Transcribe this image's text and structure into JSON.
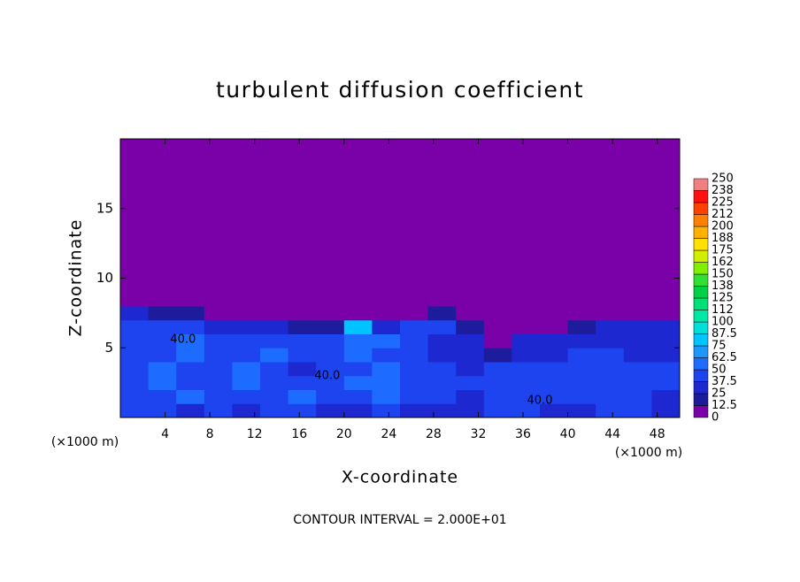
{
  "chart_data": {
    "type": "heatmap",
    "title": "turbulent diffusion coefficient",
    "xlabel": "X-coordinate",
    "ylabel": "Z-coordinate",
    "xunits": [
      "(×1000 m)",
      "(×1000 m)"
    ],
    "footer": "CONTOUR INTERVAL = 2.000E+01",
    "xlim": [
      0,
      50
    ],
    "ylim": [
      0,
      20
    ],
    "xticks": [
      4,
      8,
      12,
      16,
      20,
      24,
      28,
      32,
      36,
      40,
      44,
      48
    ],
    "yticks": [
      5,
      10,
      15
    ],
    "x": [
      0,
      2.5,
      5,
      7.5,
      10,
      12.5,
      15,
      17.5,
      20,
      22.5,
      25,
      27.5,
      30,
      32.5,
      35,
      37.5,
      40,
      42.5,
      45,
      47.5,
      50
    ],
    "y": [
      0,
      1,
      2,
      3,
      4,
      5,
      6,
      7,
      8,
      20
    ],
    "z": [
      [
        40,
        45,
        35,
        40,
        30,
        45,
        40,
        30,
        35,
        45,
        30,
        35,
        30,
        40,
        40,
        35,
        35,
        40,
        40,
        35
      ],
      [
        45,
        40,
        50,
        45,
        40,
        45,
        50,
        45,
        40,
        60,
        45,
        40,
        35,
        45,
        40,
        40,
        45,
        45,
        40,
        35
      ],
      [
        45,
        55,
        45,
        40,
        50,
        45,
        40,
        45,
        50,
        55,
        45,
        40,
        40,
        45,
        45,
        45,
        40,
        45,
        40,
        40
      ],
      [
        40,
        50,
        45,
        40,
        50,
        45,
        35,
        40,
        45,
        50,
        40,
        40,
        35,
        40,
        40,
        40,
        40,
        40,
        45,
        40
      ],
      [
        45,
        45,
        50,
        45,
        45,
        50,
        45,
        40,
        50,
        45,
        40,
        35,
        30,
        20,
        35,
        35,
        40,
        40,
        35,
        35
      ],
      [
        45,
        40,
        50,
        40,
        45,
        45,
        40,
        45,
        60,
        50,
        40,
        35,
        25,
        10,
        30,
        30,
        35,
        35,
        35,
        35
      ],
      [
        45,
        40,
        45,
        25,
        30,
        30,
        20,
        15,
        75,
        35,
        40,
        45,
        15,
        5,
        5,
        5,
        20,
        25,
        30,
        30
      ],
      [
        30,
        15,
        20,
        5,
        5,
        0,
        0,
        0,
        10,
        0,
        10,
        20,
        5,
        0,
        0,
        0,
        0,
        0,
        5,
        10
      ],
      [
        0,
        0,
        0,
        0,
        0,
        0,
        0,
        0,
        0,
        0,
        0,
        0,
        0,
        0,
        0,
        0,
        0,
        0,
        0,
        0
      ]
    ],
    "colorbar_ticks": [
      0,
      12.5,
      25,
      37.5,
      50,
      62.5,
      75,
      87.5,
      100,
      {
        "value": 112.5,
        "label": "112"
      },
      125,
      {
        "value": 137.5,
        "label": "138"
      },
      150,
      {
        "value": 162.5,
        "label": "162"
      },
      175,
      {
        "value": 187.5,
        "label": "188"
      },
      200,
      {
        "value": 212.5,
        "label": "212"
      },
      225,
      {
        "value": 237.5,
        "label": "238"
      },
      250
    ],
    "colors": [
      "#7a00a8",
      "#1c1c9c",
      "#1e28d0",
      "#1e44f0",
      "#1e6cff",
      "#1e96ff",
      "#00c4ff",
      "#00e0d8",
      "#00e8a8",
      "#00e078",
      "#00d048",
      "#30e030",
      "#80f000",
      "#d0f000",
      "#ffe000",
      "#ffb000",
      "#ff8000",
      "#ff4000",
      "#ff1010",
      "#f08080"
    ],
    "annotations": [
      {
        "text": "40.0",
        "x": 18.5,
        "y": 3.0
      },
      {
        "text": "40.0",
        "x": 37.5,
        "y": 1.2
      },
      {
        "text": "40.0",
        "x": 5.6,
        "y": 5.6
      }
    ]
  }
}
